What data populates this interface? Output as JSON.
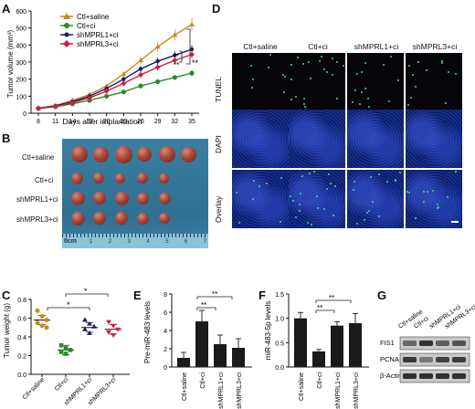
{
  "panels": {
    "A": "A",
    "B": "B",
    "C": "C",
    "D": "D",
    "E": "E",
    "F": "F",
    "G": "G"
  },
  "panelA": {
    "ylabel": "Tumor volume (mm³)",
    "xlabel": "Days after implantation",
    "sig": [
      "**",
      "**",
      "**"
    ],
    "legend": [
      "Ctl+saline",
      "Ctl+ci",
      "shMPRL1+ci",
      "shMPRL3+ci"
    ]
  },
  "panelB": {
    "rows": [
      "Ctl+saline",
      "Ctl+ci",
      "shMPRL1+ci",
      "shMPRL3+ci"
    ],
    "ruler": "0cm"
  },
  "panelC": {
    "sig": [
      "*",
      "*"
    ]
  },
  "panelD": {
    "cols": [
      "Ctl+saline",
      "Ctl+ci",
      "shMPRL1+ci",
      "shMPRL3+ci"
    ],
    "rows": [
      "TUNEL",
      "DAPI",
      "Overlay"
    ]
  },
  "panelE": {
    "sig": [
      "**",
      "**"
    ]
  },
  "panelF": {
    "sig": [
      "**",
      "**"
    ]
  },
  "panelG": {
    "cols": [
      "Ctl+saline",
      "Ctl+ci",
      "shMPRL1+ci",
      "shMPRL3+ci"
    ],
    "bands": [
      "FIS1",
      "PCNA",
      "β-Actin"
    ]
  },
  "colors": {
    "saline": "#c8891e",
    "ci": "#2a8a2a",
    "sh1": "#1a1a6e",
    "sh3": "#d21e3a"
  },
  "chart_data": [
    {
      "panel": "A",
      "type": "line",
      "ylabel": "Tumor volume (mm³)",
      "xlabel": "Days after implantation",
      "x": [
        8,
        11,
        14,
        17,
        20,
        23,
        26,
        29,
        32,
        35
      ],
      "xticks": [
        "8",
        "11",
        "14",
        "17",
        "20",
        "23",
        "26",
        "29",
        "32",
        "35"
      ],
      "yticks": [
        0,
        100,
        200,
        300,
        400,
        500,
        600
      ],
      "ylim": [
        0,
        600
      ],
      "series": [
        {
          "name": "Ctl+saline",
          "values": [
            30,
            45,
            75,
            110,
            160,
            230,
            310,
            390,
            460,
            520
          ]
        },
        {
          "name": "Ctl+ci",
          "values": [
            28,
            38,
            55,
            75,
            100,
            125,
            160,
            185,
            210,
            235
          ]
        },
        {
          "name": "shMPRL1+ci",
          "values": [
            30,
            43,
            68,
            100,
            145,
            200,
            260,
            305,
            340,
            375
          ]
        },
        {
          "name": "shMPRL3+ci",
          "values": [
            29,
            40,
            62,
            90,
            130,
            175,
            225,
            270,
            310,
            345
          ]
        }
      ]
    },
    {
      "panel": "C",
      "type": "scatter",
      "ylabel": "Tumor weight (g)",
      "categories": [
        "Ctl+saline",
        "Ctl+ci",
        "shMPRL1+ci",
        "shMPRL3+ci"
      ],
      "yticks": [
        "0.0",
        "0.2",
        "0.4",
        "0.6",
        "0.8"
      ],
      "ylim": [
        0,
        0.8
      ],
      "means": [
        0.58,
        0.26,
        0.5,
        0.48
      ],
      "points": [
        [
          0.68,
          0.62,
          0.58,
          0.55,
          0.52,
          0.5
        ],
        [
          0.31,
          0.28,
          0.26,
          0.24,
          0.22
        ],
        [
          0.58,
          0.54,
          0.51,
          0.48,
          0.44
        ],
        [
          0.56,
          0.52,
          0.48,
          0.45,
          0.42
        ]
      ]
    },
    {
      "panel": "E",
      "type": "bar",
      "ylabel": "Pre-miR-483 levels",
      "categories": [
        "Ctl+saline",
        "Ctl+ci",
        "shMPRL1+ci",
        "shMPRL3+ci"
      ],
      "values": [
        1.0,
        5.0,
        2.5,
        2.1
      ],
      "errors": [
        0.6,
        1.2,
        1.0,
        1.0
      ],
      "yticks": [
        0,
        2,
        4,
        6,
        8
      ],
      "ylim": [
        0,
        8
      ]
    },
    {
      "panel": "F",
      "type": "bar",
      "ylabel": "miR-483-5p levels",
      "categories": [
        "Ctl+saline",
        "Ctl+ci",
        "shMPRL1+ci",
        "shMPRL3+ci"
      ],
      "values": [
        1.0,
        0.32,
        0.85,
        0.9
      ],
      "errors": [
        0.12,
        0.04,
        0.08,
        0.2
      ],
      "yticks": [
        "0.0",
        "0.5",
        "1.0",
        "1.5"
      ],
      "ylim": [
        0,
        1.5
      ]
    }
  ]
}
